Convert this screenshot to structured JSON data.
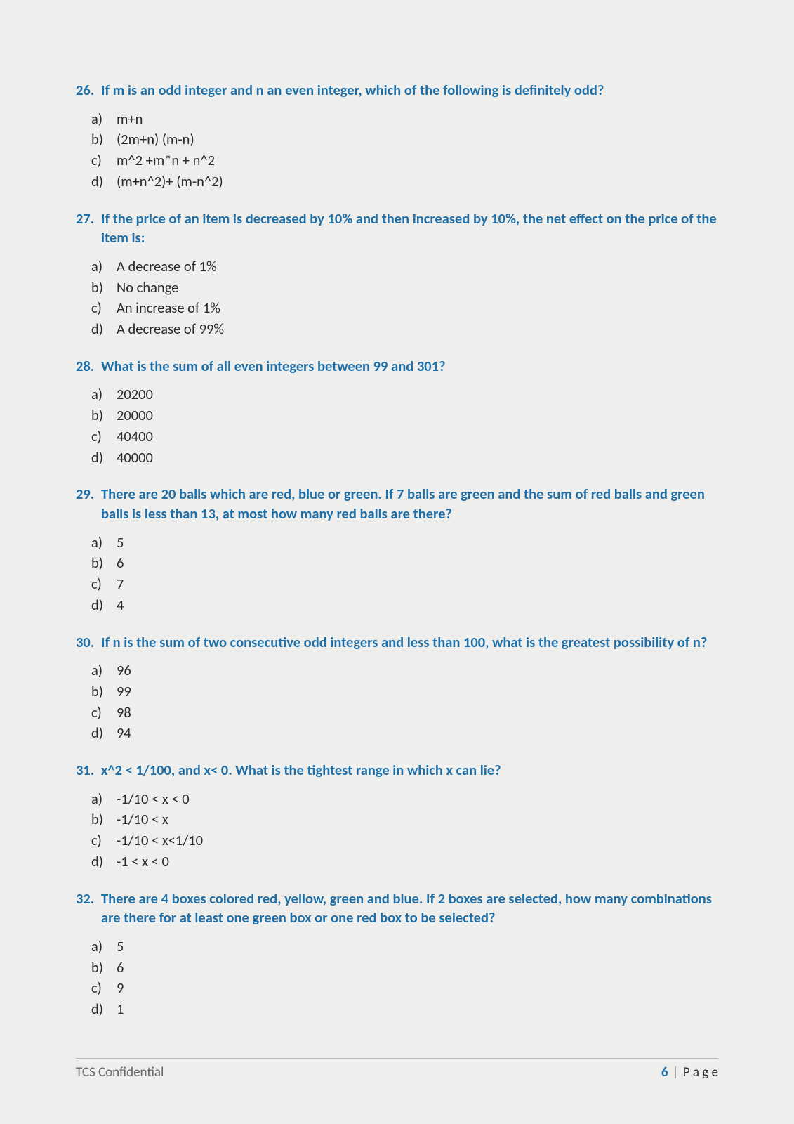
{
  "questions": [
    {
      "number": "26.",
      "text": "If m is an odd integer and n an even integer, which of the following is definitely odd?",
      "options": [
        {
          "label": "a)",
          "text": "m+n"
        },
        {
          "label": "b)",
          "text": "(2m+n) (m-n)"
        },
        {
          "label": "c)",
          "text": "m^2 +m*n + n^2"
        },
        {
          "label": "d)",
          "text": "(m+n^2)+ (m-n^2)"
        }
      ]
    },
    {
      "number": "27.",
      "text": "If the price of an item is decreased by 10% and then increased by 10%, the net effect on the price of the item is:",
      "options": [
        {
          "label": "a)",
          "text": "A decrease of 1%"
        },
        {
          "label": "b)",
          "text": "No change"
        },
        {
          "label": "c)",
          "text": "An increase of 1%"
        },
        {
          "label": "d)",
          "text": "A decrease of 99%"
        }
      ]
    },
    {
      "number": "28.",
      "text": "What is the sum of all even integers between 99 and 301?",
      "options": [
        {
          "label": "a)",
          "text": "20200"
        },
        {
          "label": "b)",
          "text": "20000"
        },
        {
          "label": "c)",
          "text": "40400"
        },
        {
          "label": "d)",
          "text": "40000"
        }
      ]
    },
    {
      "number": "29.",
      "text": "There are 20 balls which are red, blue or green. If 7 balls are green and the sum of red balls and green balls is less than 13, at most how many red balls are there?",
      "options": [
        {
          "label": "a)",
          "text": "5"
        },
        {
          "label": "b)",
          "text": "6"
        },
        {
          "label": "c)",
          "text": "7"
        },
        {
          "label": "d)",
          "text": "4"
        }
      ]
    },
    {
      "number": "30.",
      "text": "If n is the sum of two consecutive odd integers and less than 100, what is the greatest possibility of n?",
      "options": [
        {
          "label": "a)",
          "text": "96"
        },
        {
          "label": "b)",
          "text": "99"
        },
        {
          "label": "c)",
          "text": "98"
        },
        {
          "label": "d)",
          "text": "94"
        }
      ]
    },
    {
      "number": "31.",
      "text": "x^2 < 1/100, and x< 0. What is the tightest range in which x can lie?",
      "options": [
        {
          "label": "a)",
          "text": "-1/10 < x < 0"
        },
        {
          "label": "b)",
          "text": "-1/10 < x"
        },
        {
          "label": "c)",
          "text": "-1/10 < x<1/10"
        },
        {
          "label": "d)",
          "text": "-1 < x < 0"
        }
      ]
    },
    {
      "number": "32.",
      "text": "There are 4 boxes colored red, yellow, green and blue. If 2 boxes are selected, how many combinations are there for at least one green box or one red box to be selected?",
      "options": [
        {
          "label": "a)",
          "text": "5"
        },
        {
          "label": "b)",
          "text": "6"
        },
        {
          "label": "c)",
          "text": "9"
        },
        {
          "label": "d)",
          "text": "1"
        }
      ]
    }
  ],
  "footer": {
    "left": "TCS Confidential",
    "page_number": "6",
    "page_label": "P a g e"
  }
}
